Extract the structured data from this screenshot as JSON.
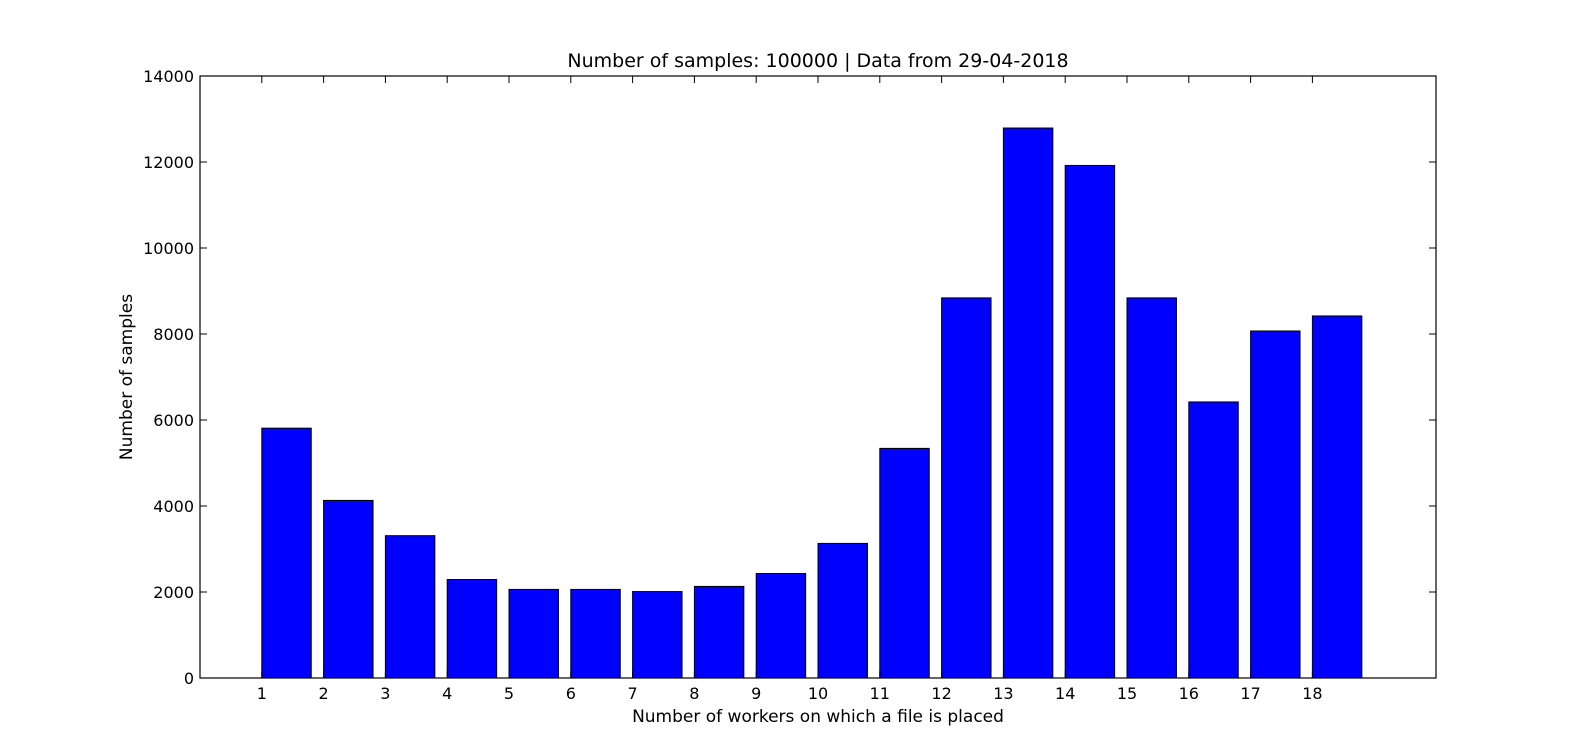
{
  "chart_data": {
    "type": "bar",
    "title": "Number of samples: 100000 | Data from 29-04-2018",
    "xlabel": "Number of workers on which a file is placed",
    "ylabel": "Number of samples",
    "categories": [
      "1",
      "2",
      "3",
      "4",
      "5",
      "6",
      "7",
      "8",
      "9",
      "10",
      "11",
      "12",
      "13",
      "14",
      "15",
      "16",
      "17",
      "18"
    ],
    "values": [
      5810,
      4130,
      3310,
      2290,
      2060,
      2060,
      2010,
      2130,
      2430,
      3130,
      5340,
      8840,
      12790,
      11920,
      8840,
      6420,
      8070,
      8420
    ],
    "xlim": [
      0,
      20
    ],
    "ylim": [
      0,
      14000
    ],
    "yticks": [
      0,
      2000,
      4000,
      6000,
      8000,
      10000,
      12000,
      14000
    ],
    "bar_color": "#0000ff",
    "edge_color": "#000000",
    "grid": false,
    "legend": "none"
  }
}
